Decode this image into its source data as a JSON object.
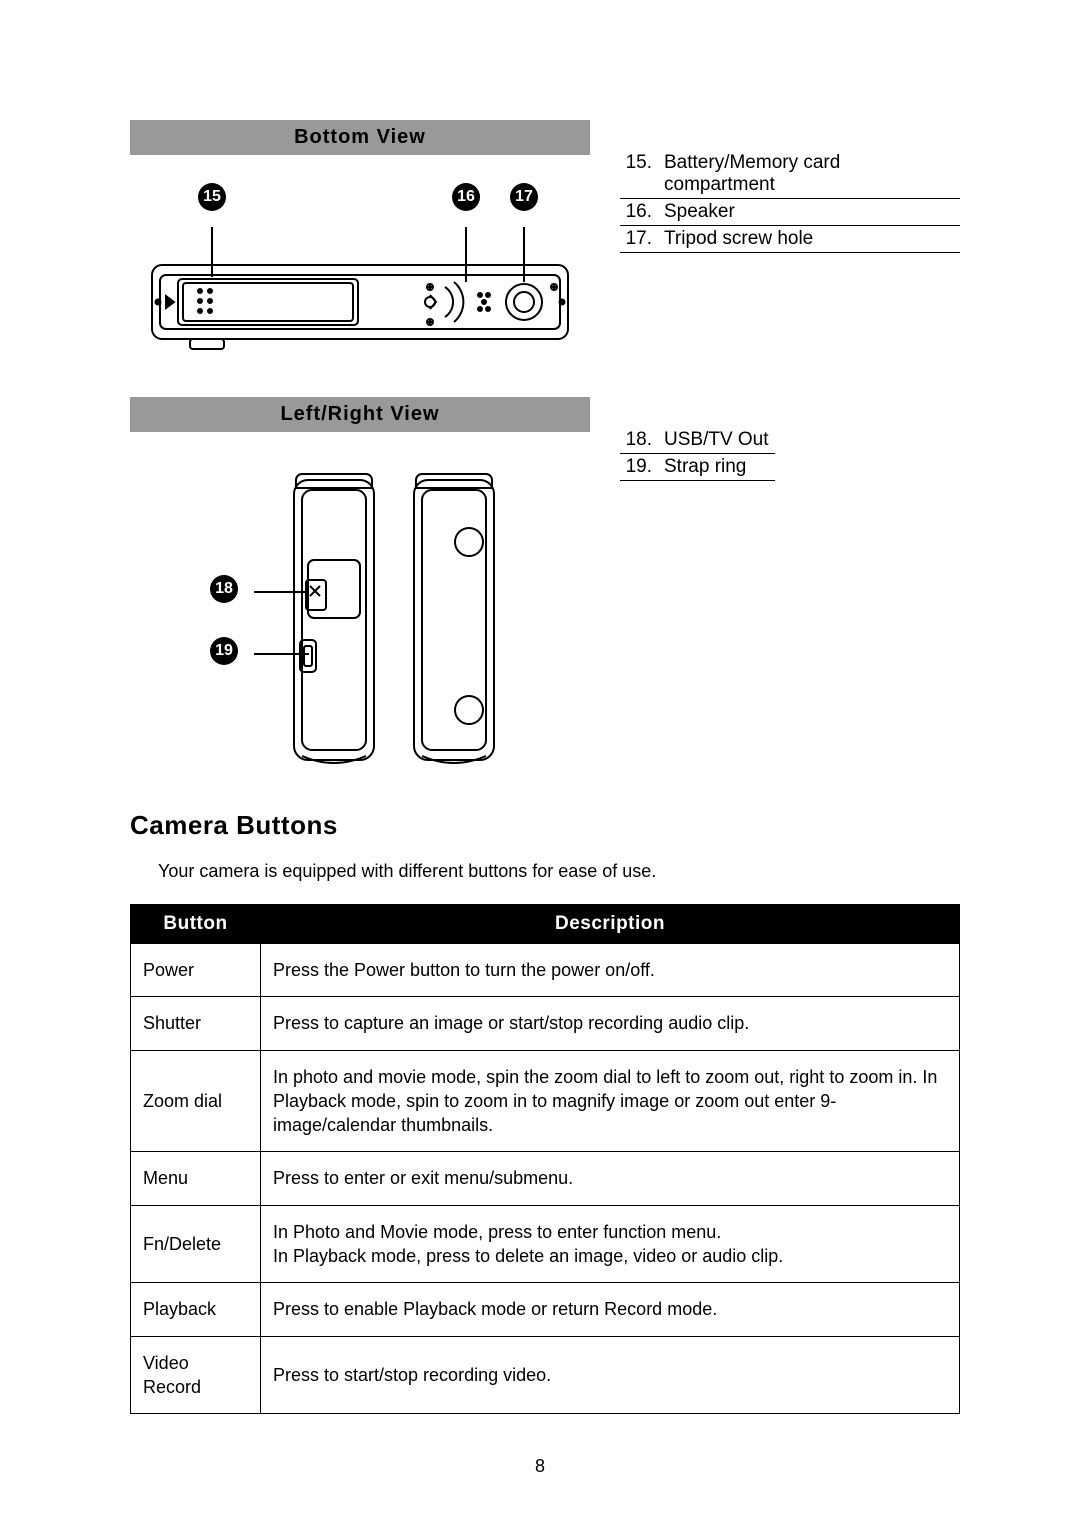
{
  "sections": {
    "bottom_view": {
      "title": "Bottom View",
      "markers": [
        "15",
        "16",
        "17"
      ],
      "parts": [
        {
          "num": "15.",
          "label": "Battery/Memory card compartment"
        },
        {
          "num": "16.",
          "label": "Speaker"
        },
        {
          "num": "17.",
          "label": "Tripod screw hole"
        }
      ]
    },
    "side_view": {
      "title": "Left/Right View",
      "markers": [
        "18",
        "19"
      ],
      "parts": [
        {
          "num": "18.",
          "label": "USB/TV Out"
        },
        {
          "num": "19.",
          "label": "Strap ring"
        }
      ]
    }
  },
  "buttons_section": {
    "heading": "Camera Buttons",
    "lead": "Your camera is equipped with different buttons for ease of use.",
    "columns": [
      "Button",
      "Description"
    ],
    "rows": [
      {
        "name": "Power",
        "desc": "Press the Power button to turn the power on/off."
      },
      {
        "name": "Shutter",
        "desc": "Press to capture an image or start/stop recording audio clip."
      },
      {
        "name": "Zoom dial",
        "desc": "In photo and movie mode, spin the zoom dial to left to zoom out, right to zoom in. In Playback mode, spin to zoom in to magnify image or zoom out enter 9-image/calendar thumbnails."
      },
      {
        "name": "Menu",
        "desc": "Press to enter or exit menu/submenu."
      },
      {
        "name": "Fn/Delete",
        "desc": "In Photo and Movie mode, press to enter function menu.\nIn Playback mode, press to delete an image, video or audio clip."
      },
      {
        "name": "Playback",
        "desc": "Press to enable Playback mode or return Record mode."
      },
      {
        "name": "Video Record",
        "desc": "Press to start/stop recording video."
      }
    ]
  },
  "page_number": "8",
  "colors": {
    "title_bg": "#999999",
    "table_header_bg": "#000000",
    "table_header_fg": "#ffffff",
    "border": "#000000"
  }
}
